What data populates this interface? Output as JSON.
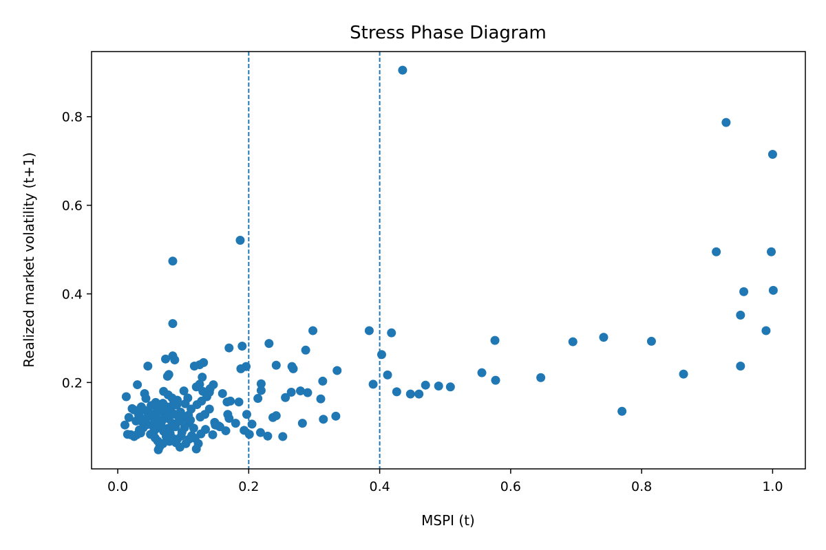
{
  "chart_data": {
    "type": "scatter",
    "title": "Stress Phase Diagram",
    "xlabel": "MSPI (t)",
    "ylabel": "Realized market volatility (t+1)",
    "xlim": [
      -0.04,
      1.05
    ],
    "ylim": [
      0.005,
      0.947
    ],
    "xticks": [
      0.0,
      0.2,
      0.4,
      0.6,
      0.8,
      1.0
    ],
    "xtick_labels": [
      "0.0",
      "0.2",
      "0.4",
      "0.6",
      "0.8",
      "1.0"
    ],
    "yticks": [
      0.2,
      0.4,
      0.6,
      0.8
    ],
    "ytick_labels": [
      "0.2",
      "0.4",
      "0.6",
      "0.8"
    ],
    "vlines": [
      0.2,
      0.4
    ],
    "grid": false,
    "legend": "none",
    "colors": {
      "points": "#1f77b4",
      "vlines": "#1f77b4",
      "axes": "#000000"
    },
    "points": [
      [
        0.435,
        0.905
      ],
      [
        0.929,
        0.787
      ],
      [
        1.0,
        0.715
      ],
      [
        0.187,
        0.521
      ],
      [
        0.084,
        0.474
      ],
      [
        0.914,
        0.495
      ],
      [
        0.998,
        0.495
      ],
      [
        0.956,
        0.405
      ],
      [
        1.001,
        0.408
      ],
      [
        0.084,
        0.333
      ],
      [
        0.951,
        0.352
      ],
      [
        0.99,
        0.317
      ],
      [
        0.951,
        0.237
      ],
      [
        0.384,
        0.317
      ],
      [
        0.418,
        0.312
      ],
      [
        0.298,
        0.317
      ],
      [
        0.576,
        0.295
      ],
      [
        0.695,
        0.292
      ],
      [
        0.742,
        0.302
      ],
      [
        0.815,
        0.293
      ],
      [
        0.864,
        0.219
      ],
      [
        0.77,
        0.135
      ],
      [
        0.646,
        0.211
      ],
      [
        0.556,
        0.222
      ],
      [
        0.577,
        0.205
      ],
      [
        0.403,
        0.263
      ],
      [
        0.412,
        0.217
      ],
      [
        0.39,
        0.196
      ],
      [
        0.426,
        0.179
      ],
      [
        0.447,
        0.174
      ],
      [
        0.46,
        0.174
      ],
      [
        0.47,
        0.194
      ],
      [
        0.49,
        0.192
      ],
      [
        0.508,
        0.19
      ],
      [
        0.335,
        0.227
      ],
      [
        0.313,
        0.203
      ],
      [
        0.31,
        0.163
      ],
      [
        0.314,
        0.117
      ],
      [
        0.333,
        0.124
      ],
      [
        0.231,
        0.288
      ],
      [
        0.287,
        0.273
      ],
      [
        0.266,
        0.236
      ],
      [
        0.268,
        0.231
      ],
      [
        0.242,
        0.239
      ],
      [
        0.19,
        0.282
      ],
      [
        0.196,
        0.236
      ],
      [
        0.188,
        0.231
      ],
      [
        0.219,
        0.197
      ],
      [
        0.219,
        0.182
      ],
      [
        0.214,
        0.164
      ],
      [
        0.256,
        0.166
      ],
      [
        0.265,
        0.178
      ],
      [
        0.279,
        0.181
      ],
      [
        0.29,
        0.177
      ],
      [
        0.237,
        0.121
      ],
      [
        0.242,
        0.125
      ],
      [
        0.197,
        0.128
      ],
      [
        0.193,
        0.092
      ],
      [
        0.205,
        0.106
      ],
      [
        0.201,
        0.083
      ],
      [
        0.218,
        0.087
      ],
      [
        0.229,
        0.079
      ],
      [
        0.252,
        0.078
      ],
      [
        0.282,
        0.108
      ],
      [
        0.17,
        0.278
      ],
      [
        0.167,
        0.156
      ],
      [
        0.172,
        0.158
      ],
      [
        0.185,
        0.156
      ],
      [
        0.168,
        0.128
      ],
      [
        0.17,
        0.119
      ],
      [
        0.18,
        0.108
      ],
      [
        0.165,
        0.091
      ],
      [
        0.16,
        0.175
      ],
      [
        0.146,
        0.195
      ],
      [
        0.141,
        0.186
      ],
      [
        0.14,
        0.178
      ],
      [
        0.131,
        0.245
      ],
      [
        0.125,
        0.24
      ],
      [
        0.117,
        0.237
      ],
      [
        0.129,
        0.212
      ],
      [
        0.125,
        0.196
      ],
      [
        0.12,
        0.19
      ],
      [
        0.13,
        0.18
      ],
      [
        0.136,
        0.168
      ],
      [
        0.128,
        0.158
      ],
      [
        0.121,
        0.15
      ],
      [
        0.14,
        0.14
      ],
      [
        0.133,
        0.128
      ],
      [
        0.126,
        0.122
      ],
      [
        0.148,
        0.11
      ],
      [
        0.154,
        0.102
      ],
      [
        0.134,
        0.094
      ],
      [
        0.127,
        0.084
      ],
      [
        0.145,
        0.082
      ],
      [
        0.118,
        0.074
      ],
      [
        0.123,
        0.062
      ],
      [
        0.12,
        0.05
      ],
      [
        0.107,
        0.165
      ],
      [
        0.103,
        0.152
      ],
      [
        0.101,
        0.181
      ],
      [
        0.112,
        0.14
      ],
      [
        0.108,
        0.126
      ],
      [
        0.109,
        0.109
      ],
      [
        0.102,
        0.098
      ],
      [
        0.098,
        0.088
      ],
      [
        0.109,
        0.072
      ],
      [
        0.104,
        0.062
      ],
      [
        0.095,
        0.054
      ],
      [
        0.084,
        0.26
      ],
      [
        0.087,
        0.251
      ],
      [
        0.073,
        0.253
      ],
      [
        0.078,
        0.218
      ],
      [
        0.076,
        0.214
      ],
      [
        0.07,
        0.18
      ],
      [
        0.077,
        0.172
      ],
      [
        0.083,
        0.165
      ],
      [
        0.091,
        0.16
      ],
      [
        0.085,
        0.151
      ],
      [
        0.075,
        0.145
      ],
      [
        0.07,
        0.14
      ],
      [
        0.081,
        0.136
      ],
      [
        0.088,
        0.128
      ],
      [
        0.072,
        0.125
      ],
      [
        0.078,
        0.118
      ],
      [
        0.067,
        0.112
      ],
      [
        0.083,
        0.108
      ],
      [
        0.088,
        0.1
      ],
      [
        0.076,
        0.096
      ],
      [
        0.07,
        0.09
      ],
      [
        0.08,
        0.085
      ],
      [
        0.074,
        0.078
      ],
      [
        0.084,
        0.074
      ],
      [
        0.079,
        0.067
      ],
      [
        0.069,
        0.062
      ],
      [
        0.064,
        0.055
      ],
      [
        0.062,
        0.048
      ],
      [
        0.058,
        0.155
      ],
      [
        0.061,
        0.14
      ],
      [
        0.057,
        0.13
      ],
      [
        0.053,
        0.124
      ],
      [
        0.06,
        0.118
      ],
      [
        0.056,
        0.11
      ],
      [
        0.052,
        0.104
      ],
      [
        0.059,
        0.096
      ],
      [
        0.055,
        0.089
      ],
      [
        0.05,
        0.083
      ],
      [
        0.057,
        0.075
      ],
      [
        0.061,
        0.068
      ],
      [
        0.046,
        0.237
      ],
      [
        0.03,
        0.195
      ],
      [
        0.041,
        0.175
      ],
      [
        0.043,
        0.164
      ],
      [
        0.036,
        0.145
      ],
      [
        0.04,
        0.138
      ],
      [
        0.047,
        0.132
      ],
      [
        0.044,
        0.12
      ],
      [
        0.037,
        0.112
      ],
      [
        0.045,
        0.105
      ],
      [
        0.039,
        0.098
      ],
      [
        0.033,
        0.093
      ],
      [
        0.035,
        0.086
      ],
      [
        0.029,
        0.082
      ],
      [
        0.025,
        0.078
      ],
      [
        0.02,
        0.082
      ],
      [
        0.015,
        0.083
      ],
      [
        0.011,
        0.104
      ],
      [
        0.013,
        0.168
      ],
      [
        0.017,
        0.121
      ],
      [
        0.022,
        0.141
      ],
      [
        0.025,
        0.138
      ],
      [
        0.028,
        0.113
      ],
      [
        0.032,
        0.127
      ],
      [
        0.051,
        0.148
      ],
      [
        0.065,
        0.147
      ],
      [
        0.09,
        0.149
      ],
      [
        0.096,
        0.133
      ],
      [
        0.099,
        0.117
      ],
      [
        0.093,
        0.112
      ],
      [
        0.097,
        0.079
      ],
      [
        0.091,
        0.072
      ],
      [
        0.089,
        0.064
      ],
      [
        0.066,
        0.104
      ],
      [
        0.063,
        0.135
      ],
      [
        0.069,
        0.153
      ],
      [
        0.113,
        0.08
      ],
      [
        0.116,
        0.097
      ],
      [
        0.111,
        0.115
      ],
      [
        0.149,
        0.104
      ],
      [
        0.156,
        0.1
      ]
    ]
  }
}
